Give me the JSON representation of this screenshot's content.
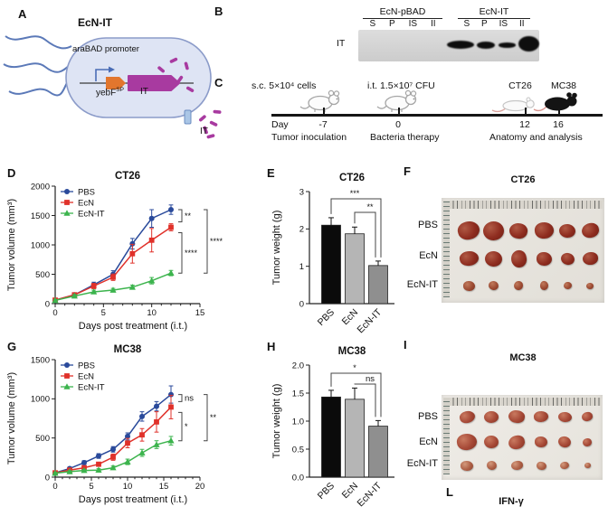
{
  "panels": {
    "A": {
      "label": "A",
      "title": "EcN-IT",
      "promoter": "araBAD promoter",
      "gene1_base": "yebF",
      "gene1_sup": "SP",
      "gene2": "IT",
      "secreted": "IT"
    },
    "B": {
      "label": "B",
      "group1": "EcN-pBAD",
      "group2": "EcN-IT",
      "lanes1": [
        "S",
        "P",
        "IS",
        "II"
      ],
      "lanes2": [
        "S",
        "P",
        "IS",
        "II"
      ],
      "blot_row": "IT"
    },
    "C": {
      "label": "C",
      "text_inoculation": "s.c. 5×10⁴ cells",
      "text_therapy": "i.t. 1.5×10⁷ CFU",
      "model_ct26": "CT26",
      "model_mc38": "MC38",
      "day_label": "Day",
      "tick_m7": "-7",
      "tick_0": "0",
      "tick_12": "12",
      "tick_16": "16",
      "event_inoculation": "Tumor inoculation",
      "event_therapy": "Bacteria therapy",
      "event_analysis": "Anatomy and analysis"
    },
    "D": {
      "label": "D"
    },
    "E": {
      "label": "E"
    },
    "F": {
      "label": "F",
      "title": "CT26",
      "row_labels": [
        "PBS",
        "EcN",
        "EcN-IT"
      ]
    },
    "G": {
      "label": "G"
    },
    "H": {
      "label": "H"
    },
    "I": {
      "label": "I",
      "title": "MC38",
      "row_labels": [
        "PBS",
        "EcN",
        "EcN-IT"
      ]
    },
    "L": {
      "label": "L",
      "title": "IFN-γ"
    }
  },
  "colors": {
    "pbs": "#2a4a9b",
    "ecn": "#e0312a",
    "ecnit": "#3cb44d",
    "gene_orange": "#e2762d",
    "gene_magenta": "#a83aa0",
    "cell_fill": "#dee4f4",
    "cell_edge": "#8b9bc9"
  },
  "chart_data": [
    {
      "id": "D",
      "type": "line",
      "title": "CT26",
      "xlabel": "Days post treatment (i.t.)",
      "ylabel": "Tumor volume (mm³)",
      "xlim": [
        0,
        15
      ],
      "ylim": [
        0,
        2000
      ],
      "xticks": [
        0,
        5,
        10,
        15
      ],
      "yticks": [
        0,
        500,
        1000,
        1500,
        2000
      ],
      "x": [
        0,
        2,
        4,
        6,
        8,
        10,
        12
      ],
      "grid": false,
      "legend_position": "top-left",
      "series": [
        {
          "name": "PBS",
          "marker": "circle",
          "color": "#2a4a9b",
          "values": [
            60,
            150,
            320,
            500,
            1020,
            1450,
            1600
          ],
          "errors": [
            20,
            30,
            45,
            60,
            90,
            150,
            80
          ]
        },
        {
          "name": "EcN",
          "marker": "square",
          "color": "#e0312a",
          "values": [
            60,
            150,
            300,
            450,
            850,
            1080,
            1300
          ],
          "errors": [
            20,
            30,
            45,
            55,
            160,
            200,
            60
          ]
        },
        {
          "name": "EcN-IT",
          "marker": "triangle",
          "color": "#3cb44d",
          "values": [
            55,
            130,
            200,
            230,
            280,
            390,
            520
          ],
          "errors": [
            15,
            25,
            30,
            30,
            35,
            55,
            45
          ]
        }
      ],
      "significance": [
        {
          "groups": [
            "PBS",
            "EcN"
          ],
          "label": "**"
        },
        {
          "groups": [
            "EcN",
            "EcN-IT"
          ],
          "label": "****"
        },
        {
          "groups": [
            "PBS",
            "EcN-IT"
          ],
          "label": "****"
        }
      ]
    },
    {
      "id": "E",
      "type": "bar",
      "title": "CT26",
      "ylabel": "Tumor weight (g)",
      "ylim": [
        0,
        3
      ],
      "yticks": [
        0,
        1,
        2,
        3
      ],
      "ytick_labels": [
        "0",
        "1",
        "2",
        "3"
      ],
      "categories": [
        "PBS",
        "EcN",
        "EcN-IT"
      ],
      "values": [
        2.1,
        1.87,
        1.02
      ],
      "errors": [
        0.2,
        0.18,
        0.12
      ],
      "bar_colors": [
        "#0b0b0b",
        "#b5b5b5",
        "#8f8f8f"
      ],
      "significance": [
        {
          "groups": [
            "PBS",
            "EcN-IT"
          ],
          "label": "***"
        },
        {
          "groups": [
            "EcN",
            "EcN-IT"
          ],
          "label": "**"
        }
      ]
    },
    {
      "id": "G",
      "type": "line",
      "title": "MC38",
      "xlabel": "Days post treatment (i.t.)",
      "ylabel": "Tumor volume (mm³)",
      "xlim": [
        0,
        20
      ],
      "ylim": [
        0,
        1500
      ],
      "xticks": [
        0,
        5,
        10,
        15,
        20
      ],
      "yticks": [
        0,
        500,
        1000,
        1500
      ],
      "x": [
        0,
        2,
        4,
        6,
        8,
        10,
        12,
        14,
        16
      ],
      "grid": false,
      "legend_position": "top-left",
      "series": [
        {
          "name": "PBS",
          "marker": "circle",
          "color": "#2a4a9b",
          "values": [
            55,
            110,
            185,
            270,
            355,
            520,
            775,
            905,
            1055
          ],
          "errors": [
            12,
            18,
            25,
            30,
            35,
            45,
            60,
            60,
            110
          ]
        },
        {
          "name": "EcN",
          "marker": "square",
          "color": "#e0312a",
          "values": [
            55,
            90,
            120,
            165,
            255,
            435,
            540,
            705,
            895
          ],
          "errors": [
            12,
            15,
            20,
            25,
            40,
            60,
            80,
            130,
            150
          ]
        },
        {
          "name": "EcN-IT",
          "marker": "triangle",
          "color": "#3cb44d",
          "values": [
            50,
            70,
            85,
            90,
            120,
            195,
            310,
            415,
            465
          ],
          "errors": [
            10,
            12,
            15,
            18,
            22,
            35,
            45,
            50,
            55
          ]
        }
      ],
      "significance": [
        {
          "groups": [
            "PBS",
            "EcN"
          ],
          "label": "ns"
        },
        {
          "groups": [
            "EcN",
            "EcN-IT"
          ],
          "label": "*"
        },
        {
          "groups": [
            "PBS",
            "EcN-IT"
          ],
          "label": "**"
        }
      ]
    },
    {
      "id": "H",
      "type": "bar",
      "title": "MC38",
      "ylabel": "Tumor weight (g)",
      "ylim": [
        0,
        2
      ],
      "yticks": [
        0,
        0.5,
        1,
        1.5,
        2
      ],
      "ytick_labels": [
        "0.0",
        "0.5",
        "1.0",
        "1.5",
        "2.0"
      ],
      "categories": [
        "PBS",
        "EcN",
        "EcN-IT"
      ],
      "values": [
        1.43,
        1.39,
        0.91
      ],
      "errors": [
        0.12,
        0.2,
        0.1
      ],
      "bar_colors": [
        "#0b0b0b",
        "#b5b5b5",
        "#8f8f8f"
      ],
      "significance": [
        {
          "groups": [
            "PBS",
            "EcN-IT"
          ],
          "label": "*"
        },
        {
          "groups": [
            "EcN",
            "EcN-IT"
          ],
          "label": "ns"
        }
      ]
    }
  ]
}
